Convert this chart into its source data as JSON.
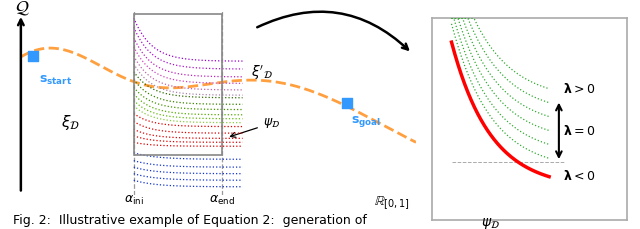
{
  "fig_width": 6.4,
  "fig_height": 2.29,
  "dpi": 100,
  "bg_color": "#ffffff",
  "orange_color": "#FFA040",
  "blue_color": "#3399FF",
  "red_color": "#EE0000",
  "caption": "Fig. 2:  Illustrative example of Equation 2:  generation of"
}
